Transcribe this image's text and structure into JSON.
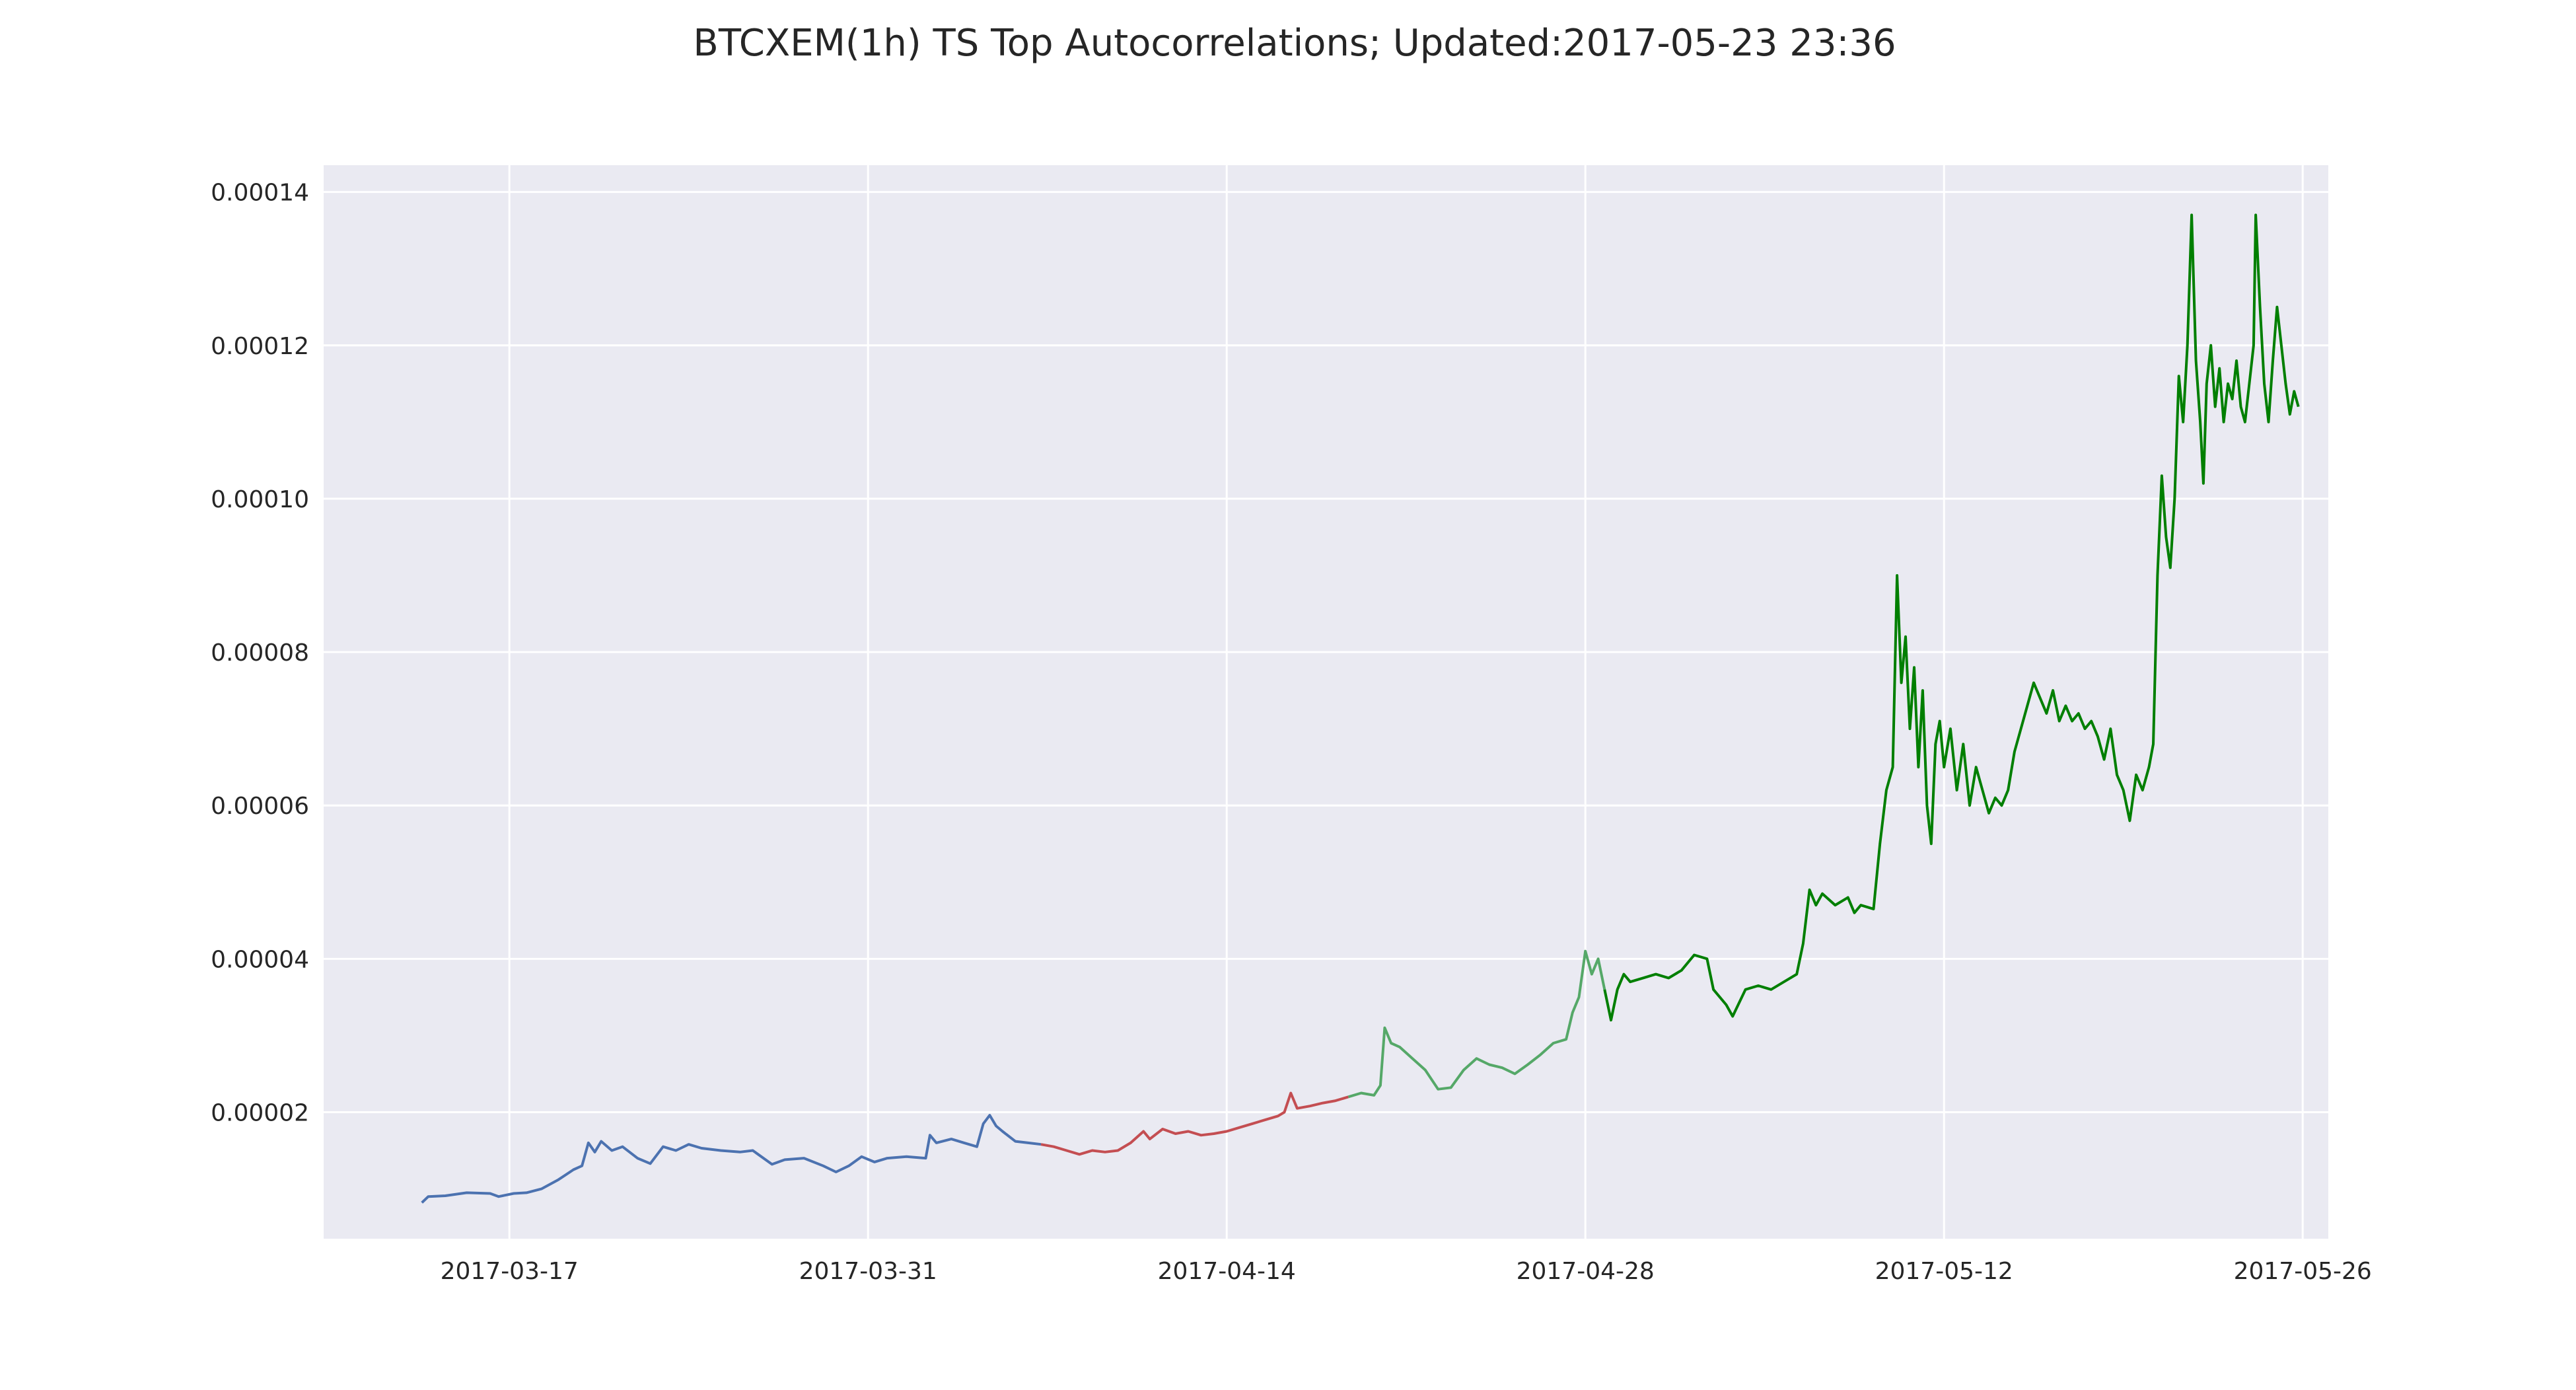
{
  "chart_data": {
    "type": "line",
    "title": "BTCXEM(1h) TS Top Autocorrelations;  Updated:2017-05-23 23:36",
    "xlabel": "",
    "ylabel": "",
    "x_tick_labels": [
      "2017-03-17",
      "2017-03-31",
      "2017-04-14",
      "2017-04-28",
      "2017-05-12",
      "2017-05-26"
    ],
    "y_tick_labels": [
      "0.00002",
      "0.00004",
      "0.00006",
      "0.00008",
      "0.00010",
      "0.00012",
      "0.00014"
    ],
    "y_ticks": [
      2e-05,
      4e-05,
      6e-05,
      8e-05,
      0.0001,
      0.00012,
      0.00014
    ],
    "xlim": [
      "2017-03-09 18:00",
      "2017-05-27 00:00"
    ],
    "ylim": [
      3.5e-06,
      0.0001435
    ],
    "grid": true,
    "background": "#eaeaf2",
    "series": [
      {
        "color": "#4c72b0",
        "points": [
          [
            "2017-03-13 14:00",
            8.2e-06
          ],
          [
            "2017-03-13 20:00",
            9e-06
          ],
          [
            "2017-03-14 12:00",
            9.1e-06
          ],
          [
            "2017-03-15 08:00",
            9.5e-06
          ],
          [
            "2017-03-16 06:00",
            9.4e-06
          ],
          [
            "2017-03-16 14:00",
            9e-06
          ],
          [
            "2017-03-17 04:00",
            9.4e-06
          ],
          [
            "2017-03-17 16:00",
            9.5e-06
          ],
          [
            "2017-03-18 06:00",
            1e-05
          ],
          [
            "2017-03-18 22:00",
            1.12e-05
          ],
          [
            "2017-03-19 12:00",
            1.25e-05
          ],
          [
            "2017-03-19 20:00",
            1.3e-05
          ],
          [
            "2017-03-20 02:00",
            1.6e-05
          ],
          [
            "2017-03-20 08:00",
            1.48e-05
          ],
          [
            "2017-03-20 14:00",
            1.62e-05
          ],
          [
            "2017-03-21 00:00",
            1.5e-05
          ],
          [
            "2017-03-21 10:00",
            1.55e-05
          ],
          [
            "2017-03-22 00:00",
            1.4e-05
          ],
          [
            "2017-03-22 12:00",
            1.33e-05
          ],
          [
            "2017-03-23 00:00",
            1.55e-05
          ],
          [
            "2017-03-23 12:00",
            1.5e-05
          ],
          [
            "2017-03-24 00:00",
            1.58e-05
          ],
          [
            "2017-03-24 12:00",
            1.53e-05
          ],
          [
            "2017-03-25 06:00",
            1.5e-05
          ],
          [
            "2017-03-26 00:00",
            1.48e-05
          ],
          [
            "2017-03-26 12:00",
            1.5e-05
          ],
          [
            "2017-03-27 06:00",
            1.32e-05
          ],
          [
            "2017-03-27 18:00",
            1.38e-05
          ],
          [
            "2017-03-28 12:00",
            1.4e-05
          ],
          [
            "2017-03-29 06:00",
            1.3e-05
          ],
          [
            "2017-03-29 18:00",
            1.22e-05
          ],
          [
            "2017-03-30 06:00",
            1.3e-05
          ],
          [
            "2017-03-30 18:00",
            1.42e-05
          ],
          [
            "2017-03-31 06:00",
            1.35e-05
          ],
          [
            "2017-03-31 18:00",
            1.4e-05
          ],
          [
            "2017-04-01 12:00",
            1.42e-05
          ],
          [
            "2017-04-02 06:00",
            1.4e-05
          ],
          [
            "2017-04-02 10:00",
            1.7e-05
          ],
          [
            "2017-04-02 16:00",
            1.6e-05
          ],
          [
            "2017-04-03 06:00",
            1.65e-05
          ],
          [
            "2017-04-03 18:00",
            1.6e-05
          ],
          [
            "2017-04-04 06:00",
            1.55e-05
          ],
          [
            "2017-04-04 12:00",
            1.85e-05
          ],
          [
            "2017-04-04 18:00",
            1.96e-05
          ],
          [
            "2017-04-05 00:00",
            1.82e-05
          ],
          [
            "2017-04-05 06:00",
            1.75e-05
          ],
          [
            "2017-04-05 18:00",
            1.62e-05
          ],
          [
            "2017-04-06 06:00",
            1.6e-05
          ],
          [
            "2017-04-06 18:00",
            1.58e-05
          ]
        ]
      },
      {
        "color": "#c44e52",
        "points": [
          [
            "2017-04-06 18:00",
            1.58e-05
          ],
          [
            "2017-04-07 06:00",
            1.55e-05
          ],
          [
            "2017-04-07 18:00",
            1.5e-05
          ],
          [
            "2017-04-08 06:00",
            1.45e-05
          ],
          [
            "2017-04-08 18:00",
            1.5e-05
          ],
          [
            "2017-04-09 06:00",
            1.48e-05
          ],
          [
            "2017-04-09 18:00",
            1.5e-05
          ],
          [
            "2017-04-10 06:00",
            1.6e-05
          ],
          [
            "2017-04-10 18:00",
            1.75e-05
          ],
          [
            "2017-04-11 00:00",
            1.65e-05
          ],
          [
            "2017-04-11 12:00",
            1.78e-05
          ],
          [
            "2017-04-12 00:00",
            1.72e-05
          ],
          [
            "2017-04-12 12:00",
            1.75e-05
          ],
          [
            "2017-04-13 00:00",
            1.7e-05
          ],
          [
            "2017-04-13 12:00",
            1.72e-05
          ],
          [
            "2017-04-14 00:00",
            1.75e-05
          ],
          [
            "2017-04-14 12:00",
            1.8e-05
          ],
          [
            "2017-04-15 00:00",
            1.85e-05
          ],
          [
            "2017-04-15 12:00",
            1.9e-05
          ],
          [
            "2017-04-16 00:00",
            1.95e-05
          ],
          [
            "2017-04-16 06:00",
            2e-05
          ],
          [
            "2017-04-16 12:00",
            2.25e-05
          ],
          [
            "2017-04-16 18:00",
            2.05e-05
          ],
          [
            "2017-04-17 06:00",
            2.08e-05
          ],
          [
            "2017-04-17 18:00",
            2.12e-05
          ],
          [
            "2017-04-18 06:00",
            2.15e-05
          ],
          [
            "2017-04-18 18:00",
            2.2e-05
          ]
        ]
      },
      {
        "color": "#55a868",
        "points": [
          [
            "2017-04-18 18:00",
            2.2e-05
          ],
          [
            "2017-04-19 06:00",
            2.25e-05
          ],
          [
            "2017-04-19 18:00",
            2.22e-05
          ],
          [
            "2017-04-20 00:00",
            2.35e-05
          ],
          [
            "2017-04-20 04:00",
            3.1e-05
          ],
          [
            "2017-04-20 10:00",
            2.9e-05
          ],
          [
            "2017-04-20 18:00",
            2.85e-05
          ],
          [
            "2017-04-21 06:00",
            2.7e-05
          ],
          [
            "2017-04-21 18:00",
            2.55e-05
          ],
          [
            "2017-04-22 06:00",
            2.3e-05
          ],
          [
            "2017-04-22 18:00",
            2.32e-05
          ],
          [
            "2017-04-23 06:00",
            2.55e-05
          ],
          [
            "2017-04-23 18:00",
            2.7e-05
          ],
          [
            "2017-04-24 06:00",
            2.62e-05
          ],
          [
            "2017-04-24 18:00",
            2.58e-05
          ],
          [
            "2017-04-25 06:00",
            2.5e-05
          ],
          [
            "2017-04-25 18:00",
            2.62e-05
          ],
          [
            "2017-04-26 06:00",
            2.75e-05
          ],
          [
            "2017-04-26 18:00",
            2.9e-05
          ],
          [
            "2017-04-27 06:00",
            2.95e-05
          ],
          [
            "2017-04-27 12:00",
            3.3e-05
          ],
          [
            "2017-04-27 18:00",
            3.5e-05
          ],
          [
            "2017-04-28 00:00",
            4.1e-05
          ],
          [
            "2017-04-28 06:00",
            3.8e-05
          ],
          [
            "2017-04-28 12:00",
            4e-05
          ],
          [
            "2017-04-28 18:00",
            3.6e-05
          ]
        ]
      },
      {
        "color": "#007f00",
        "points": [
          [
            "2017-04-28 18:00",
            3.6e-05
          ],
          [
            "2017-04-29 00:00",
            3.2e-05
          ],
          [
            "2017-04-29 06:00",
            3.6e-05
          ],
          [
            "2017-04-29 12:00",
            3.8e-05
          ],
          [
            "2017-04-29 18:00",
            3.7e-05
          ],
          [
            "2017-04-30 06:00",
            3.75e-05
          ],
          [
            "2017-04-30 18:00",
            3.8e-05
          ],
          [
            "2017-05-01 06:00",
            3.75e-05
          ],
          [
            "2017-05-01 18:00",
            3.85e-05
          ],
          [
            "2017-05-02 06:00",
            4.05e-05
          ],
          [
            "2017-05-02 18:00",
            4e-05
          ],
          [
            "2017-05-03 00:00",
            3.6e-05
          ],
          [
            "2017-05-03 12:00",
            3.4e-05
          ],
          [
            "2017-05-03 18:00",
            3.25e-05
          ],
          [
            "2017-05-04 06:00",
            3.6e-05
          ],
          [
            "2017-05-04 18:00",
            3.65e-05
          ],
          [
            "2017-05-05 06:00",
            3.6e-05
          ],
          [
            "2017-05-05 18:00",
            3.7e-05
          ],
          [
            "2017-05-06 06:00",
            3.8e-05
          ],
          [
            "2017-05-06 12:00",
            4.2e-05
          ],
          [
            "2017-05-06 18:00",
            4.9e-05
          ],
          [
            "2017-05-07 00:00",
            4.7e-05
          ],
          [
            "2017-05-07 06:00",
            4.85e-05
          ],
          [
            "2017-05-07 18:00",
            4.7e-05
          ],
          [
            "2017-05-08 06:00",
            4.8e-05
          ],
          [
            "2017-05-08 12:00",
            4.6e-05
          ],
          [
            "2017-05-08 18:00",
            4.7e-05
          ],
          [
            "2017-05-09 06:00",
            4.65e-05
          ],
          [
            "2017-05-09 12:00",
            5.5e-05
          ],
          [
            "2017-05-09 18:00",
            6.2e-05
          ],
          [
            "2017-05-10 00:00",
            6.5e-05
          ],
          [
            "2017-05-10 04:00",
            9e-05
          ],
          [
            "2017-05-10 08:00",
            7.6e-05
          ],
          [
            "2017-05-10 12:00",
            8.2e-05
          ],
          [
            "2017-05-10 16:00",
            7e-05
          ],
          [
            "2017-05-10 20:00",
            7.8e-05
          ],
          [
            "2017-05-11 00:00",
            6.5e-05
          ],
          [
            "2017-05-11 04:00",
            7.5e-05
          ],
          [
            "2017-05-11 08:00",
            6e-05
          ],
          [
            "2017-05-11 12:00",
            5.5e-05
          ],
          [
            "2017-05-11 16:00",
            6.8e-05
          ],
          [
            "2017-05-11 20:00",
            7.1e-05
          ],
          [
            "2017-05-12 00:00",
            6.5e-05
          ],
          [
            "2017-05-12 06:00",
            7e-05
          ],
          [
            "2017-05-12 12:00",
            6.2e-05
          ],
          [
            "2017-05-12 18:00",
            6.8e-05
          ],
          [
            "2017-05-13 00:00",
            6e-05
          ],
          [
            "2017-05-13 06:00",
            6.5e-05
          ],
          [
            "2017-05-13 12:00",
            6.2e-05
          ],
          [
            "2017-05-13 18:00",
            5.9e-05
          ],
          [
            "2017-05-14 00:00",
            6.1e-05
          ],
          [
            "2017-05-14 06:00",
            6e-05
          ],
          [
            "2017-05-14 12:00",
            6.2e-05
          ],
          [
            "2017-05-14 18:00",
            6.7e-05
          ],
          [
            "2017-05-15 00:00",
            7e-05
          ],
          [
            "2017-05-15 06:00",
            7.3e-05
          ],
          [
            "2017-05-15 12:00",
            7.6e-05
          ],
          [
            "2017-05-15 18:00",
            7.4e-05
          ],
          [
            "2017-05-16 00:00",
            7.2e-05
          ],
          [
            "2017-05-16 06:00",
            7.5e-05
          ],
          [
            "2017-05-16 12:00",
            7.1e-05
          ],
          [
            "2017-05-16 18:00",
            7.3e-05
          ],
          [
            "2017-05-17 00:00",
            7.1e-05
          ],
          [
            "2017-05-17 06:00",
            7.2e-05
          ],
          [
            "2017-05-17 12:00",
            7e-05
          ],
          [
            "2017-05-17 18:00",
            7.1e-05
          ],
          [
            "2017-05-18 00:00",
            6.9e-05
          ],
          [
            "2017-05-18 06:00",
            6.6e-05
          ],
          [
            "2017-05-18 12:00",
            7e-05
          ],
          [
            "2017-05-18 18:00",
            6.4e-05
          ],
          [
            "2017-05-19 00:00",
            6.2e-05
          ],
          [
            "2017-05-19 06:00",
            5.8e-05
          ],
          [
            "2017-05-19 12:00",
            6.4e-05
          ],
          [
            "2017-05-19 18:00",
            6.2e-05
          ],
          [
            "2017-05-20 00:00",
            6.5e-05
          ],
          [
            "2017-05-20 04:00",
            6.8e-05
          ],
          [
            "2017-05-20 08:00",
            9e-05
          ],
          [
            "2017-05-20 12:00",
            0.000103
          ],
          [
            "2017-05-20 16:00",
            9.5e-05
          ],
          [
            "2017-05-20 20:00",
            9.1e-05
          ],
          [
            "2017-05-21 00:00",
            0.0001
          ],
          [
            "2017-05-21 04:00",
            0.000116
          ],
          [
            "2017-05-21 08:00",
            0.00011
          ],
          [
            "2017-05-21 12:00",
            0.00012
          ],
          [
            "2017-05-21 16:00",
            0.000137
          ],
          [
            "2017-05-21 20:00",
            0.000118
          ],
          [
            "2017-05-22 00:00",
            0.00011
          ],
          [
            "2017-05-22 03:00",
            0.000102
          ],
          [
            "2017-05-22 06:00",
            0.000115
          ],
          [
            "2017-05-22 10:00",
            0.00012
          ],
          [
            "2017-05-22 14:00",
            0.000112
          ],
          [
            "2017-05-22 18:00",
            0.000117
          ],
          [
            "2017-05-22 22:00",
            0.00011
          ],
          [
            "2017-05-23 02:00",
            0.000115
          ],
          [
            "2017-05-23 06:00",
            0.000113
          ],
          [
            "2017-05-23 10:00",
            0.000118
          ],
          [
            "2017-05-23 14:00",
            0.000112
          ],
          [
            "2017-05-23 18:00",
            0.00011
          ],
          [
            "2017-05-23 22:00",
            0.000115
          ],
          [
            "2017-05-24 02:00",
            0.00012
          ],
          [
            "2017-05-24 04:00",
            0.000137
          ],
          [
            "2017-05-24 08:00",
            0.000125
          ],
          [
            "2017-05-24 12:00",
            0.000115
          ],
          [
            "2017-05-24 16:00",
            0.00011
          ],
          [
            "2017-05-24 20:00",
            0.000118
          ],
          [
            "2017-05-25 00:00",
            0.000125
          ],
          [
            "2017-05-25 04:00",
            0.00012
          ],
          [
            "2017-05-25 08:00",
            0.000115
          ],
          [
            "2017-05-25 12:00",
            0.000111
          ],
          [
            "2017-05-25 16:00",
            0.000114
          ],
          [
            "2017-05-25 20:00",
            0.000112
          ]
        ]
      }
    ]
  }
}
